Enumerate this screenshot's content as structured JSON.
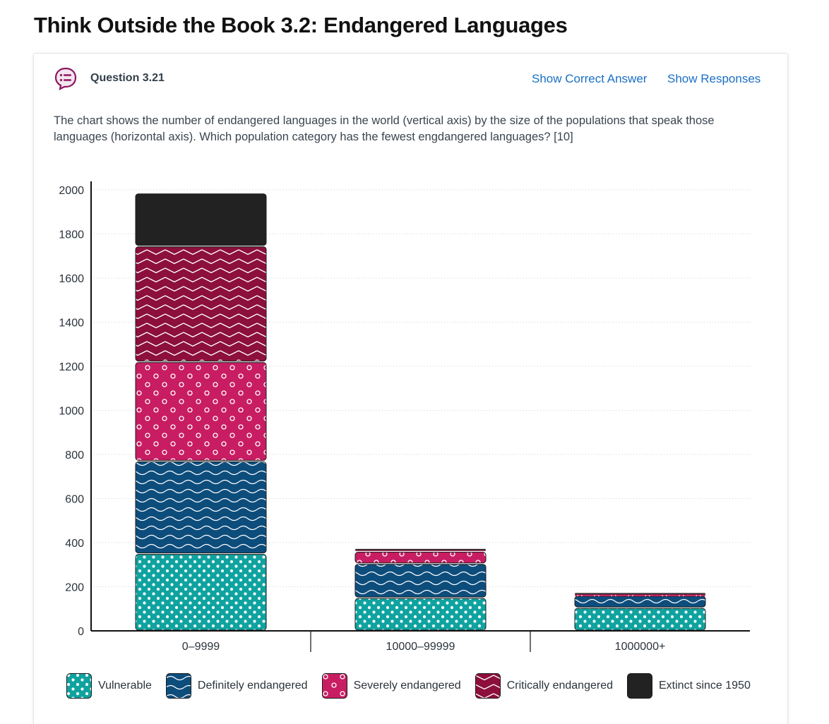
{
  "page": {
    "title": "Think Outside the Book 3.2: Endangered Languages"
  },
  "question": {
    "label": "Question 3.21",
    "show_correct_answer": "Show Correct Answer",
    "show_responses": "Show Responses",
    "text": "The chart shows the number of endangered languages in the world (vertical axis) by the size of the populations that speak those languages (horizontal axis). Which population category has the fewest engdangered languages? [10]"
  },
  "colors": {
    "link": "#1a6fc4",
    "icon": "#8e1561",
    "vulnerable": "#0fa3a0",
    "definitely": "#0d4d7c",
    "severely": "#c81d62",
    "critically": "#8c0f3c",
    "extinct": "#222222"
  },
  "chart_data": {
    "type": "bar",
    "stacked": true,
    "categories": [
      "0–9999",
      "10000–99999",
      "1000000+"
    ],
    "series": [
      {
        "name": "Vulnerable",
        "key": "vulnerable",
        "pattern": "dots",
        "values": [
          350,
          150,
          105
        ]
      },
      {
        "name": "Definitely endangered",
        "key": "definitely",
        "pattern": "waves",
        "values": [
          420,
          155,
          55
        ]
      },
      {
        "name": "Severely endangered",
        "key": "severely",
        "pattern": "rings",
        "values": [
          450,
          55,
          5
        ]
      },
      {
        "name": "Critically endangered",
        "key": "critically",
        "pattern": "zigzag",
        "values": [
          525,
          10,
          5
        ]
      },
      {
        "name": "Extinct since 1950",
        "key": "extinct",
        "pattern": "solid",
        "values": [
          240,
          5,
          5
        ]
      }
    ],
    "yticks": [
      0,
      200,
      400,
      600,
      800,
      1000,
      1200,
      1400,
      1600,
      1800,
      2000
    ],
    "ylim": [
      0,
      2000
    ],
    "grid": true,
    "legend": "bottom",
    "xlabel": "",
    "ylabel": ""
  }
}
